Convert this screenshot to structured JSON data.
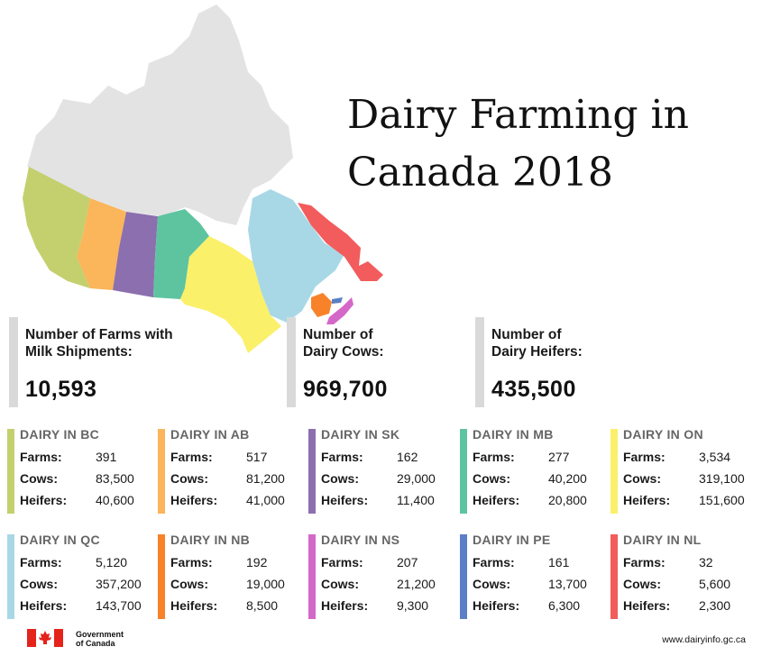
{
  "title": "Dairy Farming in Canada 2018",
  "stats": [
    {
      "label_line1": "Number of Farms with",
      "label_line2": "Milk Shipments:",
      "value": "10,593"
    },
    {
      "label_line1": "Number of",
      "label_line2": "Dairy Cows:",
      "value": "969,700"
    },
    {
      "label_line1": "Number of",
      "label_line2": "Dairy Heifers:",
      "value": "435,500"
    }
  ],
  "row_labels": {
    "farms": "Farms:",
    "cows": "Cows:",
    "heifers": "Heifers:"
  },
  "provinces": [
    {
      "title": "DAIRY IN BC",
      "farms": "391",
      "cows": "83,500",
      "heifers": "40,600",
      "color": "#c3d06d"
    },
    {
      "title": "DAIRY IN AB",
      "farms": "517",
      "cows": "81,200",
      "heifers": "41,000",
      "color": "#fbb55a"
    },
    {
      "title": "DAIRY IN SK",
      "farms": "162",
      "cows": "29,000",
      "heifers": "11,400",
      "color": "#8c6fae"
    },
    {
      "title": "DAIRY IN MB",
      "farms": "277",
      "cows": "40,200",
      "heifers": "20,800",
      "color": "#5ec4a0"
    },
    {
      "title": "DAIRY IN ON",
      "farms": "3,534",
      "cows": "319,100",
      "heifers": "151,600",
      "color": "#fbf06a"
    },
    {
      "title": "DAIRY IN QC",
      "farms": "5,120",
      "cows": "357,200",
      "heifers": "143,700",
      "color": "#a8d8e6"
    },
    {
      "title": "DAIRY IN NB",
      "farms": "192",
      "cows": "19,000",
      "heifers": "8,500",
      "color": "#f7822a"
    },
    {
      "title": "DAIRY IN NS",
      "farms": "207",
      "cows": "21,200",
      "heifers": "9,300",
      "color": "#d468c8"
    },
    {
      "title": "DAIRY IN PE",
      "farms": "161",
      "cows": "13,700",
      "heifers": "6,300",
      "color": "#5b7fc4"
    },
    {
      "title": "DAIRY IN NL",
      "farms": "32",
      "cows": "5,600",
      "heifers": "2,300",
      "color": "#f25c5c"
    }
  ],
  "footer": {
    "gov_line1": "Government",
    "gov_line2": "of Canada",
    "url": "www.dairyinfo.gc.ca"
  },
  "map_colors": {
    "territories": "#e3e3e4",
    "flag_red": "#e4231b"
  }
}
